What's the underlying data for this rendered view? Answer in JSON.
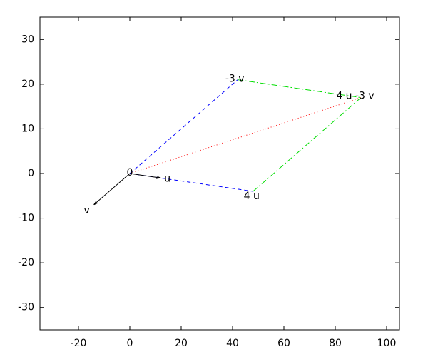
{
  "chart_data": {
    "type": "vector",
    "xlim": [
      -35,
      105
    ],
    "ylim": [
      -35,
      35
    ],
    "xticks": [
      -20,
      0,
      20,
      40,
      60,
      80,
      100
    ],
    "yticks": [
      -30,
      -20,
      -10,
      0,
      10,
      20,
      30
    ],
    "points": [
      {
        "label": "0",
        "x": 0,
        "y": 0
      },
      {
        "label": "u",
        "x": 12,
        "y": -1
      },
      {
        "label": "v",
        "x": -14,
        "y": -7
      },
      {
        "label": "4 u",
        "x": 48,
        "y": -4
      },
      {
        "label": "-3 v",
        "x": 42,
        "y": 21
      },
      {
        "label": "4 u -3 v",
        "x": 90,
        "y": 17
      }
    ]
  }
}
